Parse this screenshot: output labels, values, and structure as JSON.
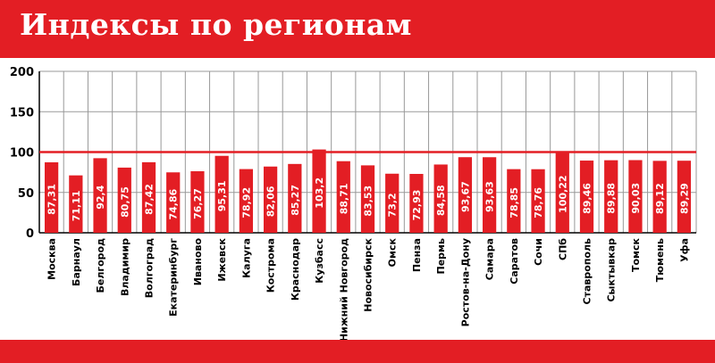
{
  "header": {
    "title": "Индексы по регионам"
  },
  "colors": {
    "accent": "#e31e24",
    "gridline": "#999999",
    "text": "#000000",
    "value_text": "#ffffff"
  },
  "chart_data": {
    "type": "bar",
    "title": "Индексы по регионам",
    "xlabel": "",
    "ylabel": "",
    "ylim": [
      0,
      200
    ],
    "yticks": [
      0,
      50,
      100,
      150,
      200
    ],
    "grid": true,
    "reference_line": 100,
    "categories": [
      "Москва",
      "Барнаул",
      "Белгород",
      "Владимир",
      "Волгоград",
      "Екатеринбург",
      "Иваново",
      "Ижевск",
      "Калуга",
      "Кострома",
      "Краснодар",
      "Кузбасс",
      "Нижний Новгород",
      "Новосибирск",
      "Омск",
      "Пенза",
      "Пермь",
      "Ростов-на-Дону",
      "Самара",
      "Саратов",
      "Сочи",
      "СПб",
      "Ставрополь",
      "Сыктывкар",
      "Томск",
      "Тюмень",
      "Уфа"
    ],
    "values": [
      87.31,
      71.11,
      92.4,
      80.75,
      87.42,
      74.86,
      76.27,
      95.31,
      78.92,
      82.06,
      85.27,
      103.2,
      88.71,
      83.53,
      73.2,
      72.93,
      84.58,
      93.67,
      93.63,
      78.85,
      78.76,
      100.22,
      89.46,
      89.88,
      90.03,
      89.12,
      89.29
    ],
    "value_labels": [
      "87,31",
      "71,11",
      "92,4",
      "80,75",
      "87,42",
      "74,86",
      "76,27",
      "95,31",
      "78,92",
      "82,06",
      "85,27",
      "103,2",
      "88,71",
      "83,53",
      "73,2",
      "72,93",
      "84,58",
      "93,67",
      "93,63",
      "78,85",
      "78,76",
      "100,22",
      "89,46",
      "89,88",
      "90,03",
      "89,12",
      "89,29"
    ],
    "ytick_labels": [
      "0",
      "50",
      "100",
      "150",
      "200"
    ]
  }
}
